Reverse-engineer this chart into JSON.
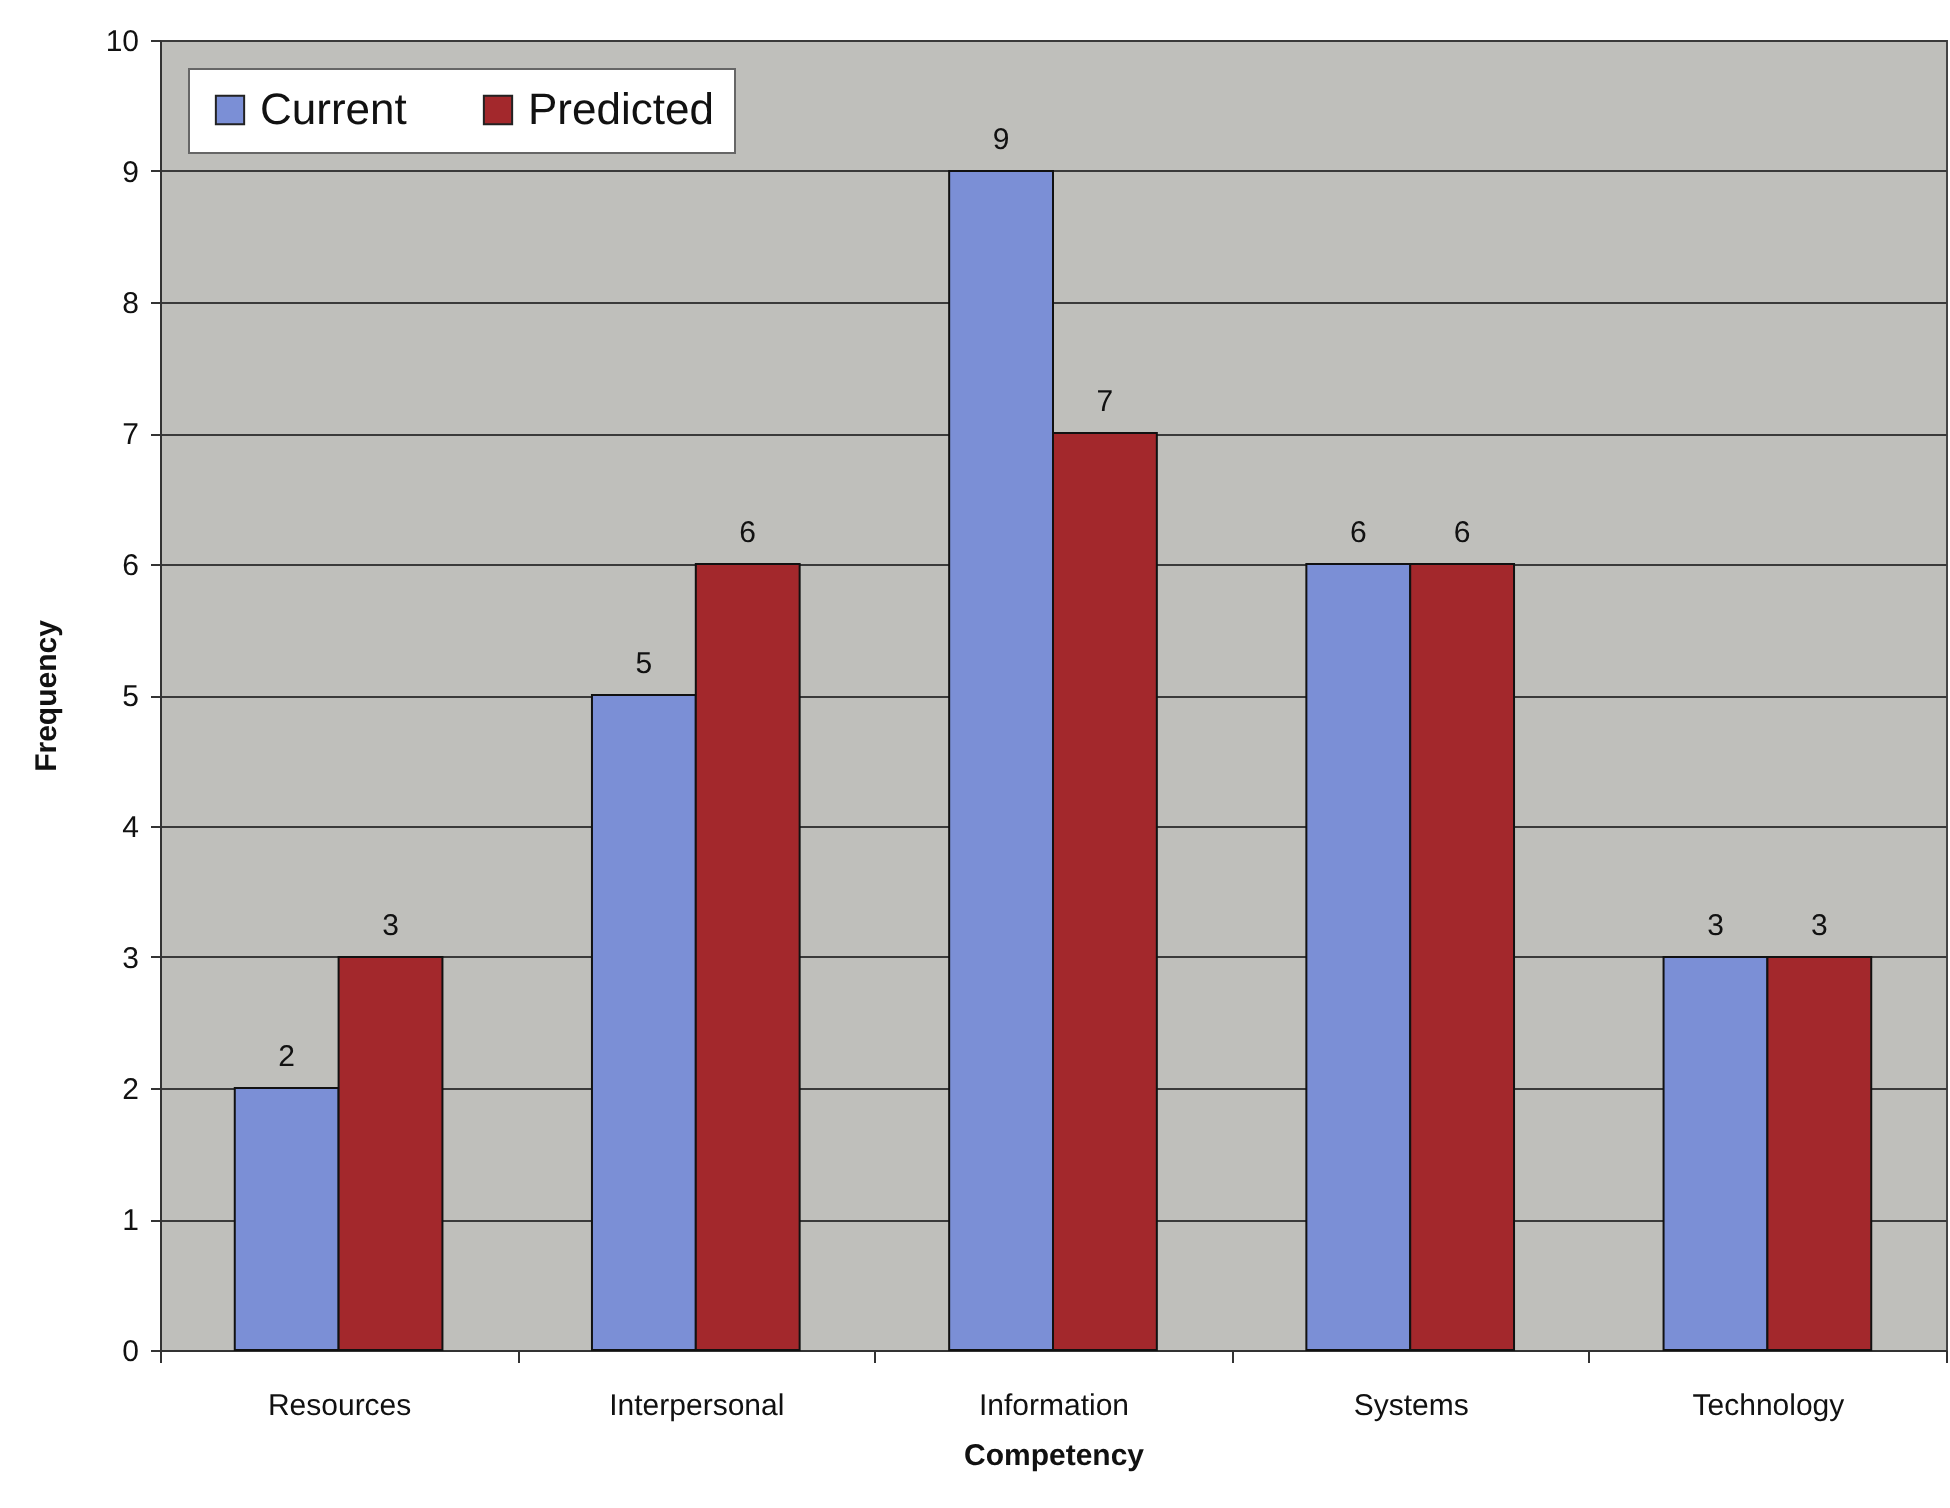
{
  "chart_data": {
    "type": "bar",
    "categories": [
      "Resources",
      "Interpersonal",
      "Information",
      "Systems",
      "Technology"
    ],
    "series": [
      {
        "name": "Current",
        "color": "#7b8fd6",
        "values": [
          2,
          5,
          9,
          6,
          3
        ]
      },
      {
        "name": "Predicted",
        "color": "#a3282c",
        "values": [
          3,
          6,
          7,
          6,
          3
        ]
      }
    ],
    "xlabel": "Competency",
    "ylabel": "Frequency",
    "ylim": [
      0,
      10
    ],
    "yticks": [
      0,
      1,
      2,
      3,
      4,
      5,
      6,
      7,
      8,
      9,
      10
    ],
    "grid": "y",
    "legend": "top left",
    "data_labels": true
  }
}
